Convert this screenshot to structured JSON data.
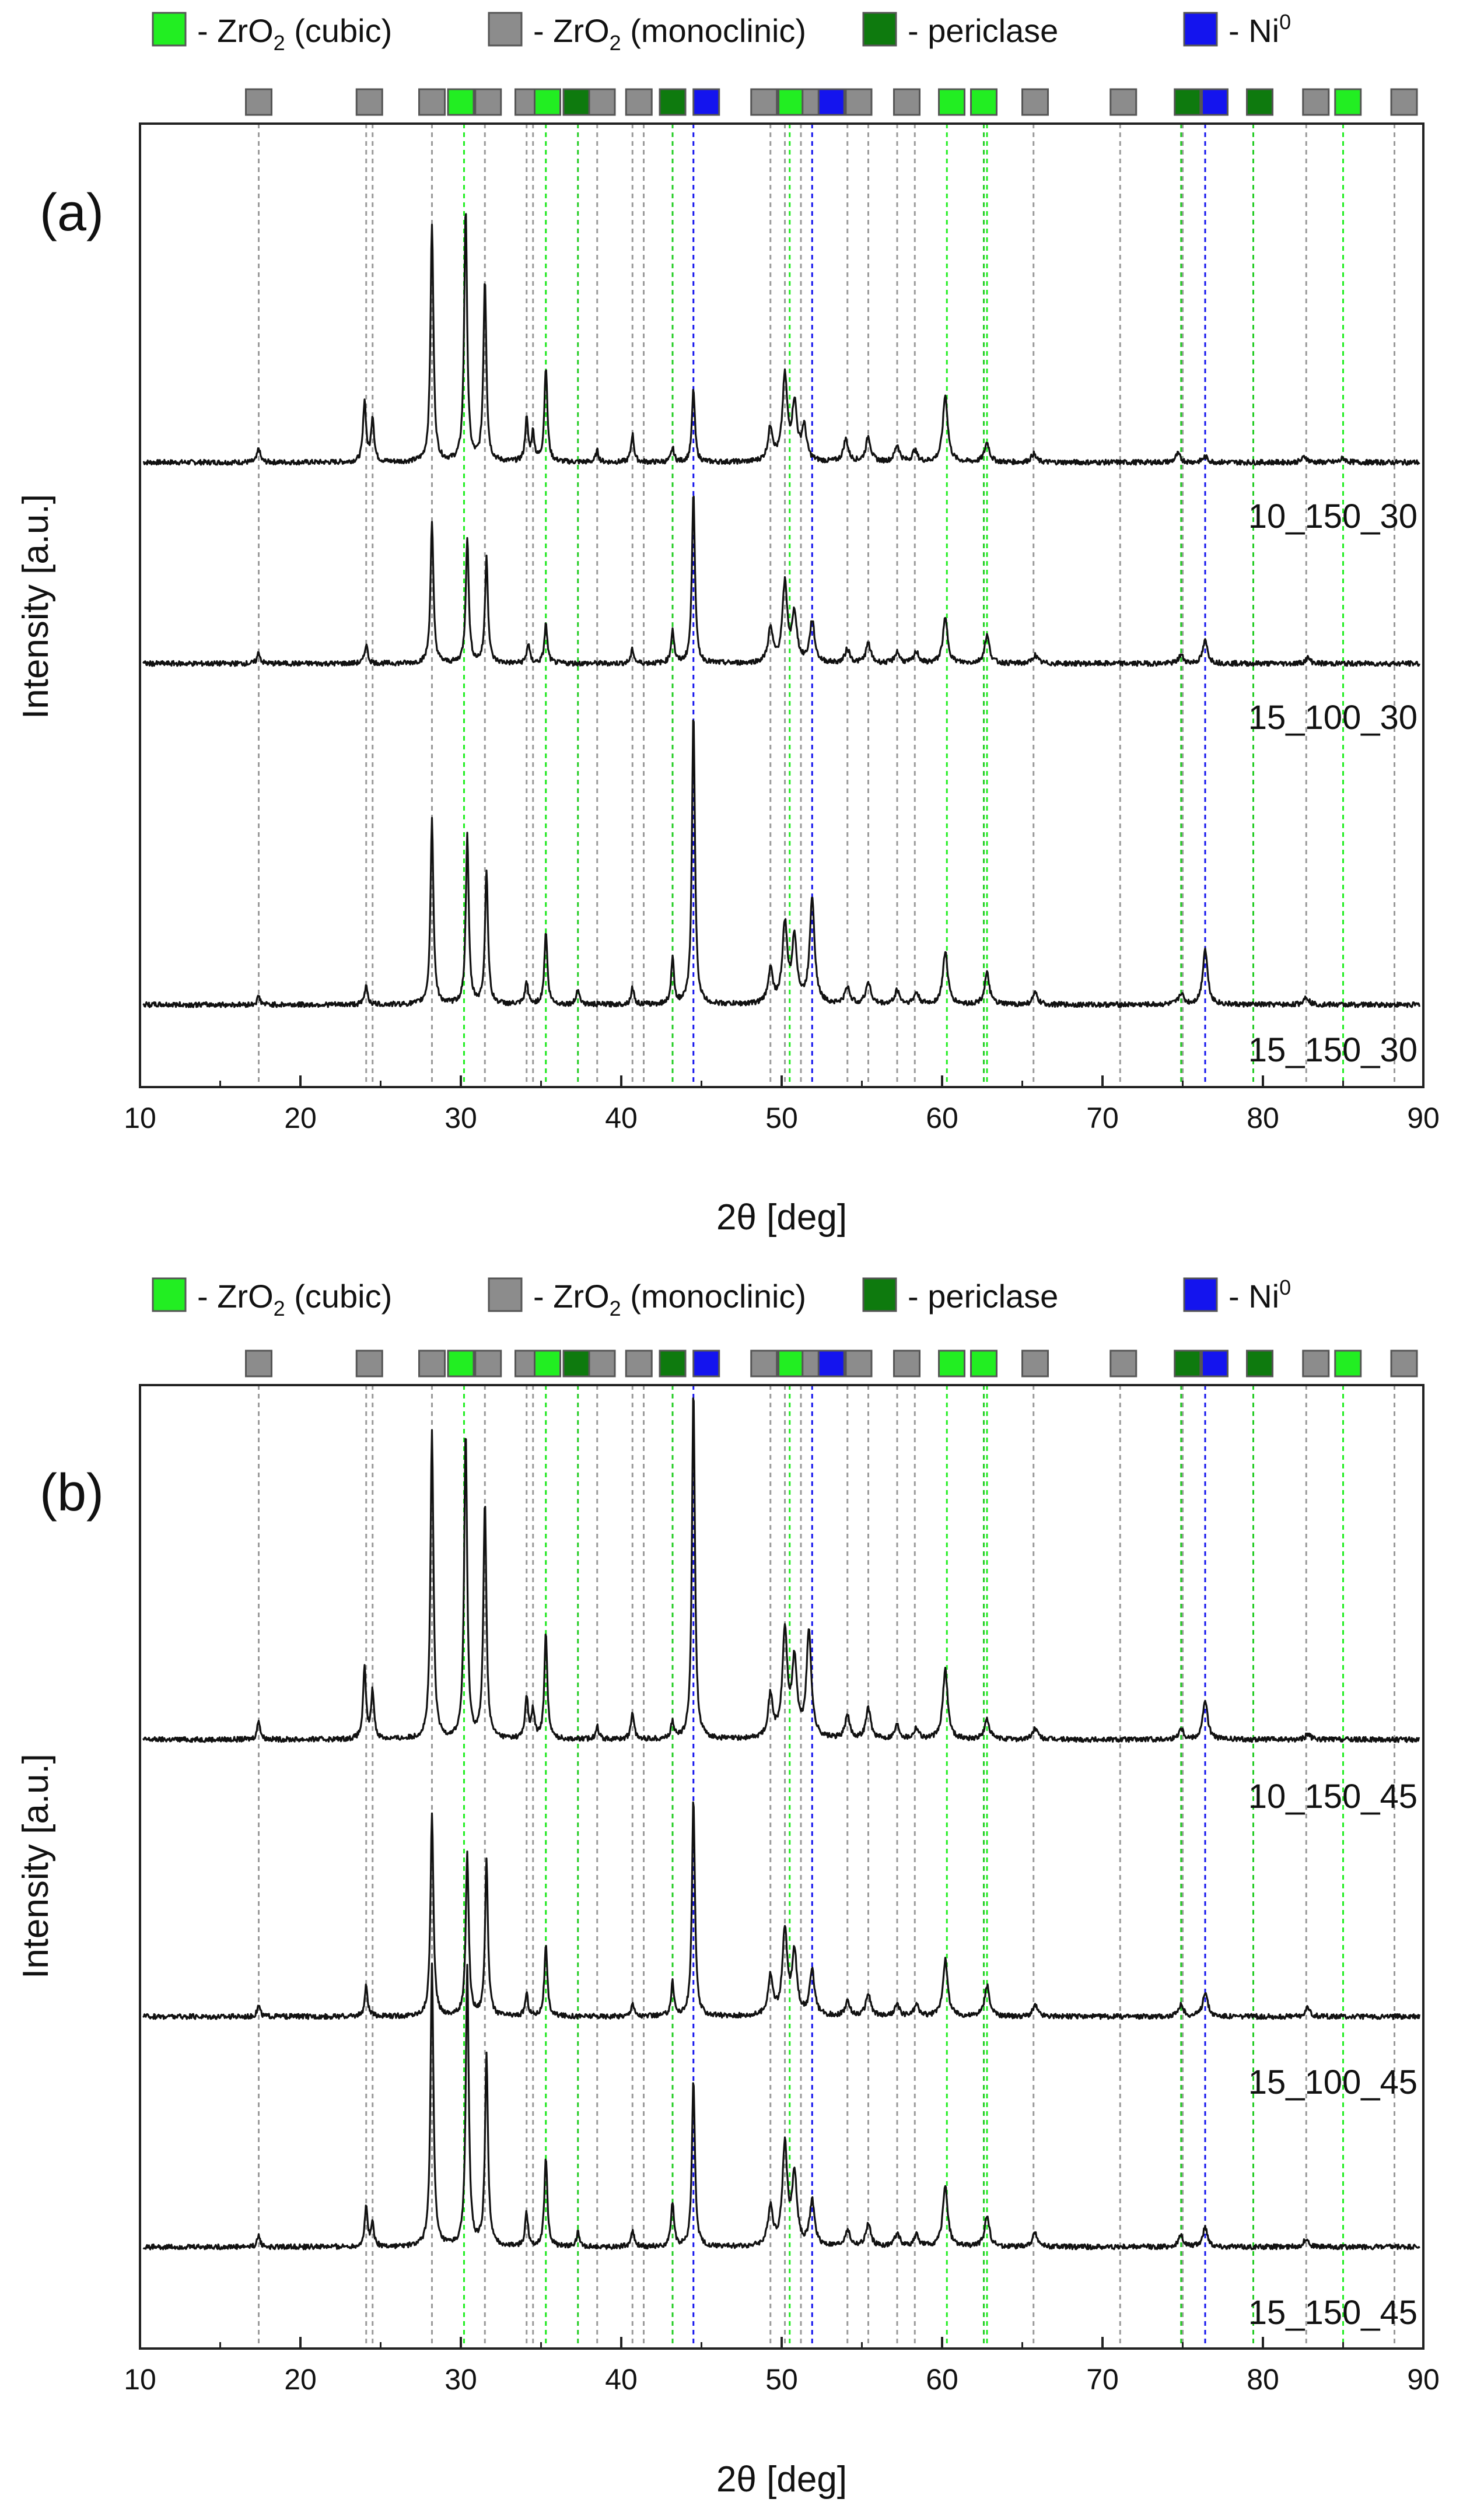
{
  "legend": {
    "items": [
      {
        "label": "- ZrO",
        "sub": "2",
        "suffix": " (cubic)",
        "color": "#22ee22"
      },
      {
        "label": "- ZrO",
        "sub": "2",
        "suffix": " (monoclinic)",
        "color": "#8c8c8c"
      },
      {
        "label": "- periclase",
        "sub": "",
        "suffix": "",
        "color": "#0e7a0e"
      },
      {
        "label": "- Ni",
        "sup": "0",
        "color": "#1414ee"
      }
    ]
  },
  "chart_data": [
    {
      "type": "line",
      "panel_label": "(a)",
      "xlabel_prefix": "2θ",
      "xlabel_suffix": " [deg]",
      "ylabel": "Intensity [a.u.]",
      "xlim": [
        10,
        90
      ],
      "xticks": [
        "10",
        "20",
        "30",
        "40",
        "50",
        "60",
        "70",
        "80",
        "90"
      ],
      "series": [
        {
          "name": "10_150_30",
          "color": "#111111"
        },
        {
          "name": "15_100_30",
          "color": "#111111"
        },
        {
          "name": "15_150_30",
          "color": "#111111"
        }
      ],
      "peaks": {
        "10_150_30": [
          [
            17.4,
            0.05
          ],
          [
            24.0,
            0.22
          ],
          [
            24.5,
            0.16
          ],
          [
            28.2,
            0.85
          ],
          [
            30.3,
            0.9
          ],
          [
            31.5,
            0.65
          ],
          [
            34.1,
            0.15
          ],
          [
            34.5,
            0.1
          ],
          [
            35.3,
            0.34
          ],
          [
            38.5,
            0.04
          ],
          [
            40.7,
            0.1
          ],
          [
            43.2,
            0.05
          ],
          [
            44.5,
            0.26
          ],
          [
            49.3,
            0.12
          ],
          [
            50.2,
            0.3
          ],
          [
            50.8,
            0.2
          ],
          [
            51.4,
            0.12
          ],
          [
            54.0,
            0.08
          ],
          [
            55.4,
            0.09
          ],
          [
            57.2,
            0.06
          ],
          [
            58.3,
            0.04
          ],
          [
            60.2,
            0.24
          ],
          [
            62.8,
            0.07
          ],
          [
            65.7,
            0.03
          ],
          [
            74.7,
            0.03
          ],
          [
            76.4,
            0.02
          ],
          [
            82.6,
            0.02
          ],
          [
            85.0,
            0.015
          ]
        ],
        "15_100_30": [
          [
            17.4,
            0.04
          ],
          [
            24.1,
            0.07
          ],
          [
            28.2,
            0.5
          ],
          [
            30.4,
            0.45
          ],
          [
            31.6,
            0.38
          ],
          [
            34.2,
            0.07
          ],
          [
            35.3,
            0.14
          ],
          [
            40.7,
            0.05
          ],
          [
            43.2,
            0.12
          ],
          [
            44.5,
            0.62
          ],
          [
            49.3,
            0.12
          ],
          [
            50.2,
            0.28
          ],
          [
            50.8,
            0.17
          ],
          [
            51.9,
            0.15
          ],
          [
            54.1,
            0.05
          ],
          [
            55.4,
            0.07
          ],
          [
            57.2,
            0.04
          ],
          [
            58.4,
            0.04
          ],
          [
            60.2,
            0.16
          ],
          [
            62.8,
            0.1
          ],
          [
            65.8,
            0.03
          ],
          [
            74.9,
            0.03
          ],
          [
            76.4,
            0.08
          ],
          [
            82.8,
            0.02
          ]
        ],
        "15_150_30": [
          [
            17.4,
            0.03
          ],
          [
            24.1,
            0.07
          ],
          [
            28.2,
            0.66
          ],
          [
            30.4,
            0.6
          ],
          [
            31.6,
            0.48
          ],
          [
            34.1,
            0.08
          ],
          [
            35.3,
            0.26
          ],
          [
            37.3,
            0.06
          ],
          [
            40.7,
            0.06
          ],
          [
            43.2,
            0.16
          ],
          [
            44.5,
            1.05
          ],
          [
            49.3,
            0.12
          ],
          [
            50.2,
            0.28
          ],
          [
            50.8,
            0.23
          ],
          [
            51.9,
            0.38
          ],
          [
            54.1,
            0.06
          ],
          [
            55.4,
            0.08
          ],
          [
            57.2,
            0.05
          ],
          [
            58.4,
            0.04
          ],
          [
            60.2,
            0.19
          ],
          [
            62.8,
            0.11
          ],
          [
            65.8,
            0.04
          ],
          [
            74.9,
            0.04
          ],
          [
            76.4,
            0.2
          ],
          [
            82.7,
            0.03
          ]
        ]
      }
    },
    {
      "type": "line",
      "panel_label": "(b)",
      "xlabel_prefix": "2θ",
      "xlabel_suffix": " [deg]",
      "ylabel": "Intensity [a.u.]",
      "xlim": [
        10,
        90
      ],
      "xticks": [
        "10",
        "20",
        "30",
        "40",
        "50",
        "60",
        "70",
        "80",
        "90"
      ],
      "series": [
        {
          "name": "10_150_45",
          "color": "#111111"
        },
        {
          "name": "15_100_45",
          "color": "#111111"
        },
        {
          "name": "15_150_45",
          "color": "#111111"
        }
      ],
      "peaks": {
        "10_150_45": [
          [
            17.4,
            0.07
          ],
          [
            24.0,
            0.25
          ],
          [
            24.5,
            0.17
          ],
          [
            28.2,
            1.1
          ],
          [
            30.3,
            1.1
          ],
          [
            31.5,
            0.85
          ],
          [
            34.1,
            0.15
          ],
          [
            34.5,
            0.1
          ],
          [
            35.3,
            0.38
          ],
          [
            38.5,
            0.05
          ],
          [
            40.7,
            0.1
          ],
          [
            43.2,
            0.06
          ],
          [
            44.5,
            1.25
          ],
          [
            49.3,
            0.15
          ],
          [
            50.2,
            0.38
          ],
          [
            50.8,
            0.27
          ],
          [
            51.7,
            0.38
          ],
          [
            54.1,
            0.08
          ],
          [
            55.4,
            0.11
          ],
          [
            57.2,
            0.05
          ],
          [
            58.4,
            0.04
          ],
          [
            60.2,
            0.25
          ],
          [
            62.8,
            0.07
          ],
          [
            65.8,
            0.04
          ],
          [
            74.9,
            0.04
          ],
          [
            76.4,
            0.14
          ],
          [
            82.8,
            0.02
          ]
        ],
        "15_100_45": [
          [
            17.4,
            0.04
          ],
          [
            24.1,
            0.11
          ],
          [
            28.2,
            0.72
          ],
          [
            30.4,
            0.58
          ],
          [
            31.6,
            0.55
          ],
          [
            34.1,
            0.08
          ],
          [
            35.3,
            0.25
          ],
          [
            40.7,
            0.05
          ],
          [
            43.2,
            0.12
          ],
          [
            44.5,
            0.78
          ],
          [
            49.3,
            0.14
          ],
          [
            50.2,
            0.3
          ],
          [
            50.8,
            0.22
          ],
          [
            51.9,
            0.16
          ],
          [
            54.1,
            0.05
          ],
          [
            55.4,
            0.08
          ],
          [
            57.2,
            0.04
          ],
          [
            58.4,
            0.04
          ],
          [
            60.2,
            0.2
          ],
          [
            62.8,
            0.11
          ],
          [
            65.8,
            0.04
          ],
          [
            74.9,
            0.04
          ],
          [
            76.4,
            0.09
          ],
          [
            82.8,
            0.03
          ]
        ],
        "15_150_45": [
          [
            17.4,
            0.04
          ],
          [
            24.1,
            0.14
          ],
          [
            24.5,
            0.08
          ],
          [
            28.2,
            1.0
          ],
          [
            30.4,
            1.0
          ],
          [
            31.6,
            0.68
          ],
          [
            34.1,
            0.12
          ],
          [
            35.3,
            0.32
          ],
          [
            37.3,
            0.05
          ],
          [
            40.7,
            0.06
          ],
          [
            43.2,
            0.16
          ],
          [
            44.5,
            0.6
          ],
          [
            49.3,
            0.14
          ],
          [
            50.2,
            0.36
          ],
          [
            50.8,
            0.25
          ],
          [
            51.9,
            0.16
          ],
          [
            54.1,
            0.06
          ],
          [
            55.4,
            0.08
          ],
          [
            57.2,
            0.05
          ],
          [
            58.4,
            0.04
          ],
          [
            60.2,
            0.22
          ],
          [
            62.8,
            0.11
          ],
          [
            65.8,
            0.05
          ],
          [
            74.9,
            0.04
          ],
          [
            76.4,
            0.07
          ],
          [
            82.7,
            0.03
          ]
        ]
      }
    }
  ],
  "reference_lines": {
    "monoclinic": [
      17.4,
      24.1,
      24.5,
      28.2,
      31.5,
      34.1,
      34.5,
      35.3,
      38.5,
      40.7,
      41.4,
      49.3,
      50.2,
      51.2,
      54.1,
      55.4,
      57.2,
      58.3,
      62.8,
      65.7,
      71.1,
      75.0,
      82.7,
      88.2
    ],
    "cubic": [
      30.2,
      35.3,
      50.5,
      60.3,
      62.8,
      85.0
    ],
    "periclase": [
      37.3,
      43.2,
      62.6,
      74.9,
      79.4
    ],
    "ni": [
      44.5,
      51.9,
      76.4
    ]
  },
  "marker_row": [
    {
      "x": 17.4,
      "phase": "monoclinic"
    },
    {
      "x": 24.3,
      "phase": "monoclinic"
    },
    {
      "x": 28.2,
      "phase": "monoclinic"
    },
    {
      "x": 30.0,
      "phase": "cubic"
    },
    {
      "x": 31.7,
      "phase": "monoclinic"
    },
    {
      "x": 34.2,
      "phase": "monoclinic"
    },
    {
      "x": 35.4,
      "phase": "cubic"
    },
    {
      "x": 37.2,
      "phase": "periclase"
    },
    {
      "x": 38.8,
      "phase": "monoclinic"
    },
    {
      "x": 41.1,
      "phase": "monoclinic"
    },
    {
      "x": 43.2,
      "phase": "periclase"
    },
    {
      "x": 45.3,
      "phase": "ni"
    },
    {
      "x": 48.9,
      "phase": "monoclinic"
    },
    {
      "x": 50.6,
      "phase": "cubic"
    },
    {
      "x": 52.1,
      "phase": "monoclinic"
    },
    {
      "x": 53.1,
      "phase": "ni"
    },
    {
      "x": 54.8,
      "phase": "monoclinic"
    },
    {
      "x": 57.8,
      "phase": "monoclinic"
    },
    {
      "x": 60.6,
      "phase": "cubic"
    },
    {
      "x": 62.6,
      "phase": "cubic"
    },
    {
      "x": 65.8,
      "phase": "monoclinic"
    },
    {
      "x": 71.3,
      "phase": "monoclinic"
    },
    {
      "x": 75.3,
      "phase": "periclase"
    },
    {
      "x": 77.0,
      "phase": "ni"
    },
    {
      "x": 79.8,
      "phase": "periclase"
    },
    {
      "x": 83.3,
      "phase": "monoclinic"
    },
    {
      "x": 85.3,
      "phase": "cubic"
    },
    {
      "x": 88.8,
      "phase": "monoclinic"
    }
  ],
  "phase_colors": {
    "monoclinic": "#8c8c8c",
    "cubic": "#22ee22",
    "periclase": "#0e7a0e",
    "ni": "#1414ee"
  }
}
